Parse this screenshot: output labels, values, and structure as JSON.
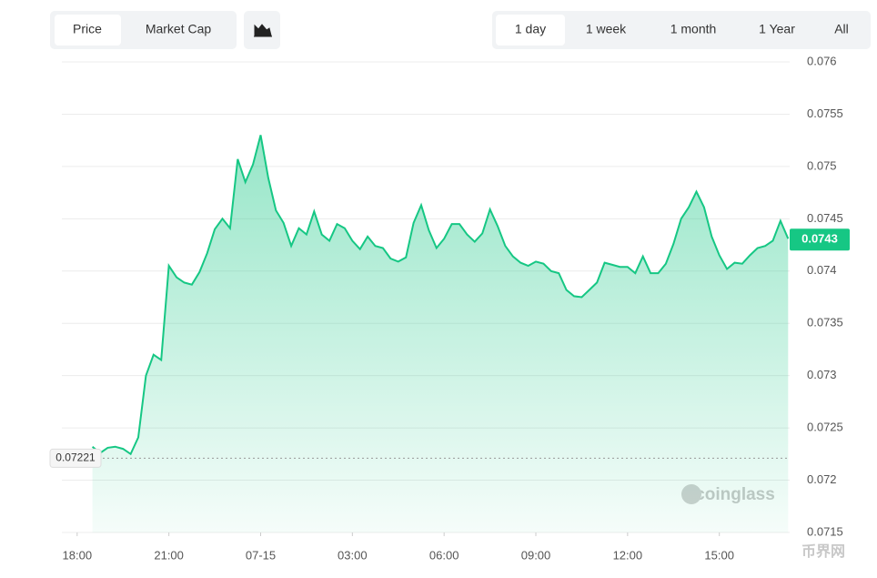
{
  "ui": {
    "tabs": [
      "Price",
      "Market Cap"
    ],
    "ranges": [
      "1 day",
      "1 week",
      "1 month",
      "1 Year",
      "All"
    ],
    "watermark": "coinglass",
    "corner_mark": "币界网"
  },
  "chart_data": {
    "type": "area",
    "color": "#16c784",
    "x": [
      0.5,
      0.75,
      1,
      1.25,
      1.5,
      1.75,
      2,
      2.25,
      2.5,
      2.75,
      3,
      3.25,
      3.5,
      3.75,
      4,
      4.25,
      4.5,
      4.75,
      5,
      5.25,
      5.5,
      5.75,
      6,
      6.25,
      6.5,
      6.75,
      7,
      7.25,
      7.5,
      7.75,
      8,
      8.25,
      8.5,
      8.75,
      9,
      9.25,
      9.5,
      9.75,
      10,
      10.25,
      10.5,
      10.75,
      11,
      11.25,
      11.5,
      11.75,
      12,
      12.25,
      12.5,
      12.75,
      13,
      13.25,
      13.5,
      13.75,
      14,
      14.25,
      14.5,
      14.75,
      15,
      15.25,
      15.5,
      15.75,
      16,
      16.25,
      16.5,
      16.75,
      17,
      17.25,
      17.5,
      17.75,
      18,
      18.25,
      18.5,
      18.75,
      19,
      19.25,
      19.5,
      19.75,
      20,
      20.25,
      20.5,
      20.75,
      21,
      21.25,
      21.5,
      21.75,
      22,
      22.25,
      22.5,
      22.75,
      23,
      23.25
    ],
    "values": [
      0.07232,
      0.07226,
      0.07231,
      0.07232,
      0.0723,
      0.07225,
      0.07241,
      0.073,
      0.0732,
      0.07315,
      0.07405,
      0.07394,
      0.07389,
      0.07387,
      0.07399,
      0.07417,
      0.0744,
      0.0745,
      0.07441,
      0.07507,
      0.07485,
      0.07502,
      0.0753,
      0.07489,
      0.07458,
      0.07446,
      0.07424,
      0.07441,
      0.07435,
      0.07457,
      0.07435,
      0.07429,
      0.07445,
      0.07441,
      0.07429,
      0.07421,
      0.07433,
      0.07424,
      0.07422,
      0.07412,
      0.07409,
      0.07413,
      0.07446,
      0.07463,
      0.07439,
      0.07422,
      0.07431,
      0.07445,
      0.07445,
      0.07435,
      0.07428,
      0.07436,
      0.07459,
      0.07443,
      0.07424,
      0.07414,
      0.07408,
      0.07405,
      0.07409,
      0.07407,
      0.074,
      0.07398,
      0.07382,
      0.07376,
      0.07375,
      0.07382,
      0.07389,
      0.07408,
      0.07406,
      0.07404,
      0.07404,
      0.07398,
      0.07414,
      0.07398,
      0.07398,
      0.07407,
      0.07426,
      0.0745,
      0.07461,
      0.07476,
      0.07461,
      0.07433,
      0.07415,
      0.07402,
      0.07408,
      0.07407,
      0.07415,
      0.07422,
      0.07424,
      0.07429,
      0.07448,
      0.07431
    ],
    "xlim": [
      -0.5,
      23.3
    ],
    "xticks": [
      {
        "value": 0,
        "label": "18:00"
      },
      {
        "value": 3,
        "label": "21:00"
      },
      {
        "value": 6,
        "label": "07-15"
      },
      {
        "value": 9,
        "label": "03:00"
      },
      {
        "value": 12,
        "label": "06:00"
      },
      {
        "value": 15,
        "label": "09:00"
      },
      {
        "value": 18,
        "label": "12:00"
      },
      {
        "value": 21,
        "label": "15:00"
      }
    ],
    "ylim": [
      0.0715,
      0.076
    ],
    "yticks": [
      0.0715,
      0.072,
      0.0725,
      0.073,
      0.0735,
      0.074,
      0.0745,
      0.075,
      0.0755,
      0.076
    ],
    "grid": true,
    "baseline": {
      "value": 0.07221,
      "label": "0.07221"
    },
    "last_price": {
      "value": 0.0743,
      "label": "0.0743"
    }
  }
}
